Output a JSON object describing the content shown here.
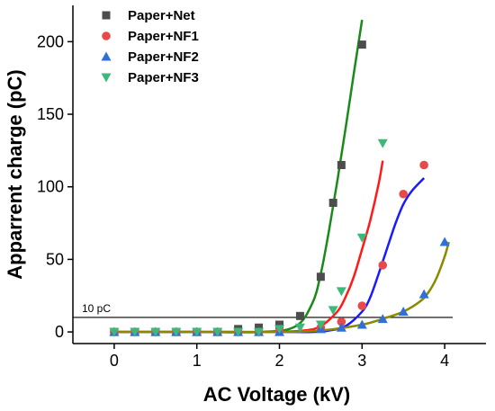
{
  "chart_data": {
    "type": "scatter",
    "xlabel": "AC Voltage (kV)",
    "ylabel": "Apparrent charge (pC)",
    "xlim": [
      -0.5,
      4.5
    ],
    "ylim": [
      -8,
      225
    ],
    "xticks": [
      0,
      1,
      2,
      3,
      4
    ],
    "yticks": [
      0,
      50,
      100,
      150,
      200
    ],
    "grid": false,
    "legend_position": "top-left",
    "threshold": {
      "value": 10,
      "label": "10 pC"
    },
    "series": [
      {
        "name": "Paper+Net",
        "marker": "square",
        "color": "#4d4d4d",
        "fit_color": "#1a8a1a",
        "x": [
          0,
          0.25,
          0.5,
          0.75,
          1.0,
          1.25,
          1.5,
          1.75,
          2.0,
          2.25,
          2.5,
          2.65,
          2.75,
          3.0
        ],
        "y": [
          0,
          0,
          0,
          0,
          0,
          0,
          2,
          3,
          5,
          11,
          38,
          89,
          115,
          198
        ]
      },
      {
        "name": "Paper+NF1",
        "marker": "circle",
        "color": "#e84a4a",
        "fit_color": "#ff1a1a",
        "x": [
          0,
          0.25,
          0.5,
          0.75,
          1.0,
          1.25,
          1.5,
          1.75,
          2.0,
          2.5,
          2.75,
          3.0,
          3.25,
          3.5,
          3.75
        ],
        "y": [
          0,
          0,
          0,
          0,
          0,
          0,
          0,
          0,
          1,
          3,
          7,
          18,
          46,
          95,
          115
        ]
      },
      {
        "name": "Paper+NF2",
        "marker": "triangle-up",
        "color": "#2e6fd8",
        "fit_color": "#1a1aff",
        "x": [
          0,
          0.25,
          0.5,
          0.75,
          1.0,
          1.25,
          1.5,
          1.75,
          2.0,
          2.5,
          2.75,
          3.0,
          3.25,
          3.5,
          3.75,
          4.0
        ],
        "y": [
          0,
          0,
          0,
          0,
          0,
          0,
          0,
          0,
          0,
          2,
          3,
          5,
          9,
          14,
          26,
          62
        ]
      },
      {
        "name": "Paper+NF3",
        "marker": "triangle-down",
        "color": "#3cb878",
        "fit_color": "#8a8a00",
        "x": [
          0,
          0.25,
          0.5,
          0.75,
          1.0,
          1.25,
          1.5,
          1.75,
          2.0,
          2.25,
          2.5,
          2.65,
          2.75,
          3.0,
          3.25
        ],
        "y": [
          0,
          0,
          0,
          0,
          0,
          0,
          0,
          0,
          2,
          3,
          5,
          15,
          28,
          65,
          130
        ]
      }
    ],
    "fits": [
      {
        "color": "#1a8a1a",
        "x": [
          0,
          1.0,
          1.8,
          2.2,
          2.4,
          2.5,
          2.6,
          2.7,
          2.8,
          2.9,
          3.0
        ],
        "y": [
          0,
          0,
          0,
          4,
          20,
          40,
          70,
          104,
          140,
          178,
          215
        ]
      },
      {
        "color": "#ff1a1a",
        "x": [
          0,
          1.0,
          1.9,
          2.3,
          2.5,
          2.7,
          2.8,
          2.9,
          3.0,
          3.1,
          3.2,
          3.25
        ],
        "y": [
          0,
          0,
          0,
          1,
          4,
          14,
          24,
          38,
          57,
          77,
          102,
          118
        ]
      },
      {
        "color": "#1a1aff",
        "x": [
          0,
          1.0,
          2.0,
          2.4,
          2.6,
          2.8,
          3.0,
          3.1,
          3.2,
          3.3,
          3.4,
          3.5,
          3.6,
          3.75
        ],
        "y": [
          0,
          0,
          0,
          0,
          1,
          4,
          14,
          24,
          40,
          57,
          74,
          88,
          97,
          106
        ]
      },
      {
        "color": "#8a8a00",
        "x": [
          0,
          1.0,
          2.0,
          2.5,
          3.0,
          3.3,
          3.5,
          3.7,
          3.8,
          3.9,
          4.0,
          4.05
        ],
        "y": [
          0,
          0,
          0,
          1,
          5,
          10,
          14,
          21,
          27,
          37,
          52,
          62
        ]
      }
    ]
  }
}
